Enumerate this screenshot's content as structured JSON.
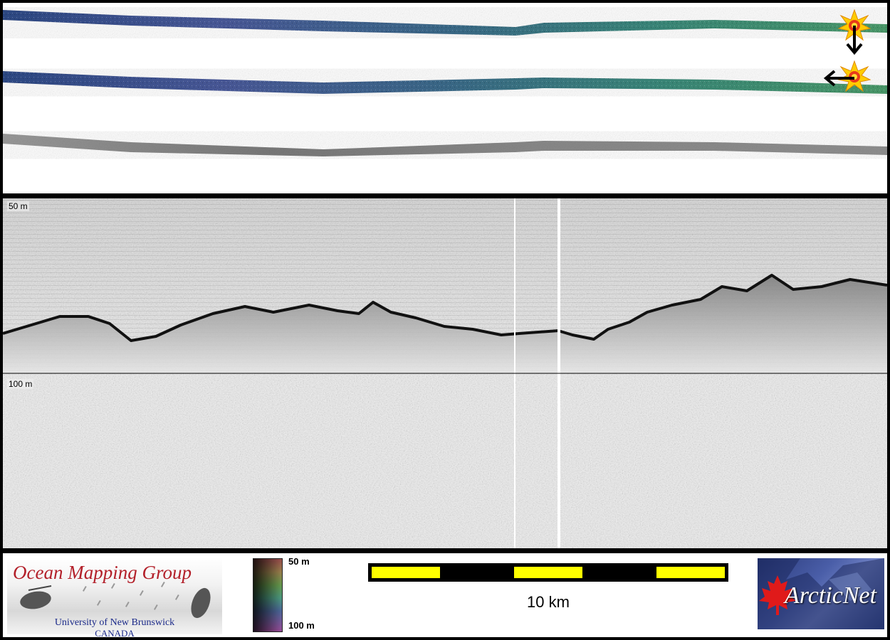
{
  "strips": {
    "swaths": [
      "bathymetry-strip-upper",
      "bathymetry-strip-middle",
      "backscatter-strip-lower"
    ],
    "markers": [
      "ship-position-top",
      "ship-position-middle"
    ],
    "arrows": [
      "down",
      "left"
    ]
  },
  "profile": {
    "top_depth_label": "50 m",
    "mid_depth_label": "100 m"
  },
  "footer": {
    "omg_logo": {
      "title": "Ocean Mapping Group",
      "line1": "University of New Brunswick",
      "line2": "CANADA"
    },
    "colorbar": {
      "top_label": "50 m",
      "bottom_label": "100 m"
    },
    "scalebar": {
      "label": "10 km",
      "colors": [
        "#ffff00",
        "#000000"
      ]
    },
    "arctic_logo": {
      "name": "ArcticNet",
      "icon": "maple-leaf-icon"
    }
  },
  "colors": {
    "frame": "#000000",
    "swath_bathy_start": "#2e4a86",
    "swath_bathy_end": "#3c8a6a",
    "backscatter": "#8a8a8a",
    "scale_yellow": "#ffff00",
    "omg_red": "#b3202a",
    "unb_blue": "#1b2a8a"
  }
}
